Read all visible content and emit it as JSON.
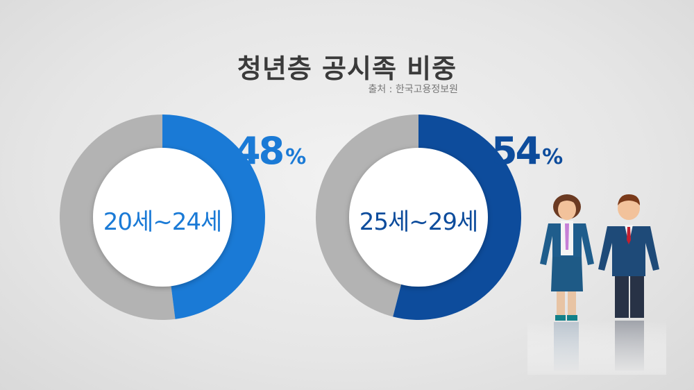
{
  "title": "청년층 공시족 비중",
  "source": "출처 : 한국고용정보원",
  "chart_data": [
    {
      "type": "pie",
      "donut": true,
      "category": "20세~24세",
      "value": 48,
      "unit": "%",
      "color": "#1a7ad6",
      "rest_color": "#b3b3b3"
    },
    {
      "type": "pie",
      "donut": true,
      "category": "25세~29세",
      "value": 54,
      "unit": "%",
      "color": "#0d4c9c",
      "rest_color": "#b3b3b3"
    }
  ],
  "illustration": "businesswoman-and-businessman-icon"
}
